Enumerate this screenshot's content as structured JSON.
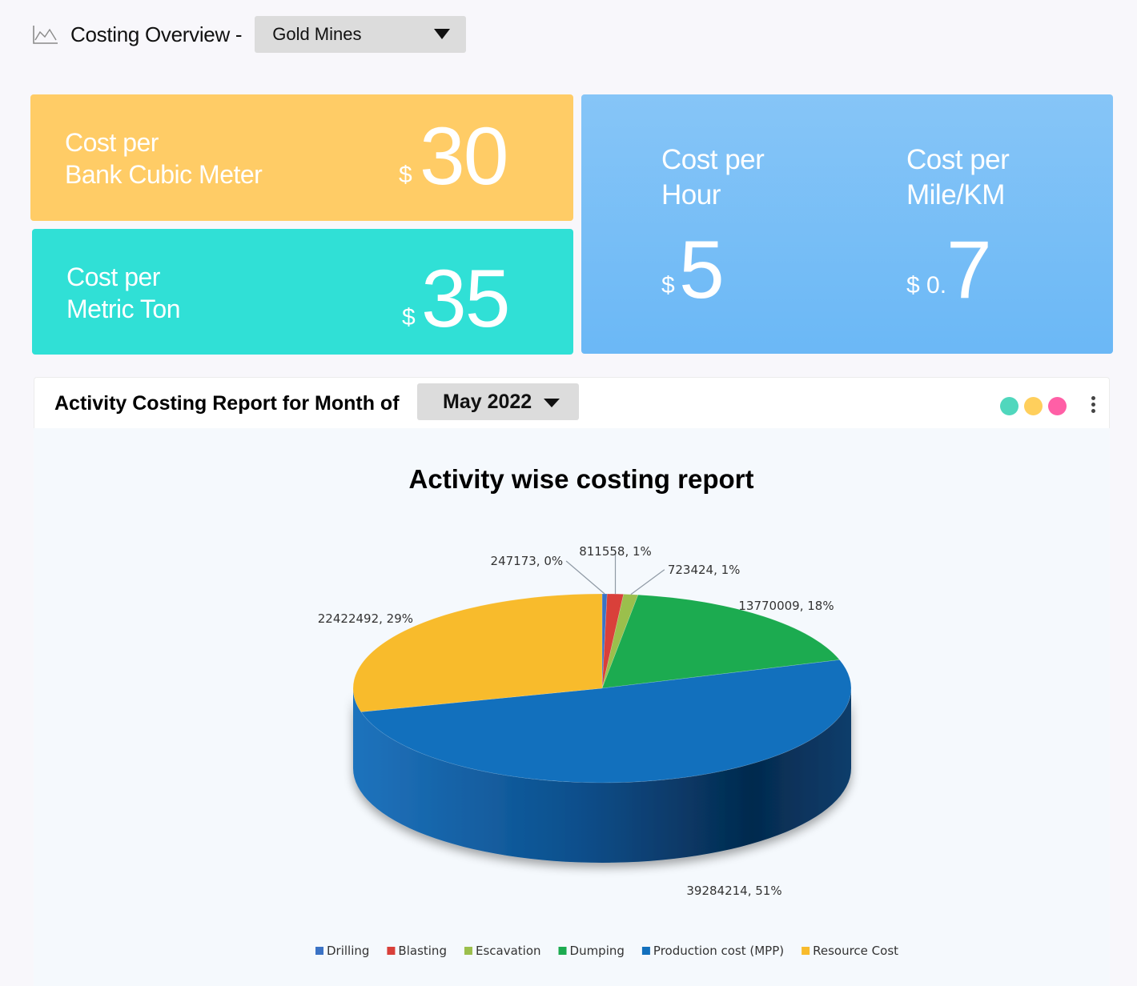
{
  "header": {
    "title": "Costing Overview -",
    "mine_selected": "Gold Mines"
  },
  "kpis": {
    "bcm": {
      "label_line1": "Cost per",
      "label_line2": "Bank Cubic Meter",
      "currency": "$",
      "value": "30",
      "color": "#ffcc66"
    },
    "ton": {
      "label_line1": "Cost per",
      "label_line2": "Metric Ton",
      "currency": "$",
      "value": "35",
      "color": "#30e0d6"
    },
    "hour": {
      "label_line1": "Cost per",
      "label_line2": "Hour",
      "currency": "$",
      "value": "5"
    },
    "mile": {
      "label_line1": "Cost per",
      "label_line2": "Mile/KM",
      "currency": "$ 0.",
      "value": "7"
    },
    "blue_color": "#75bdf6"
  },
  "report": {
    "title": "Activity Costing Report for Month of",
    "month_selected": "May 2022",
    "theme_dots": [
      "#50d7bd",
      "#ffcf5c",
      "#ff5fa6"
    ]
  },
  "chart_data": {
    "type": "pie",
    "title": "Activity wise costing report",
    "three_d": true,
    "start_angle": "12 o'clock, clockwise",
    "slices": [
      {
        "name": "Drilling",
        "value": 247173,
        "label": "247173, 0%",
        "color": "#3b73c5"
      },
      {
        "name": "Blasting",
        "value": 811558,
        "label": "811558, 1%",
        "color": "#d9403a"
      },
      {
        "name": "Escavation",
        "value": 723424,
        "label": "723424, 1%",
        "color": "#9bbf4c"
      },
      {
        "name": "Dumping",
        "value": 13770009,
        "label": "13770009, 18%",
        "color": "#1cab50"
      },
      {
        "name": "Production cost (MPP)",
        "value": 39284214,
        "label": "39284214, 51%",
        "color": "#1270bd"
      },
      {
        "name": "Resource Cost",
        "value": 22422492,
        "label": "22422492, 29%",
        "color": "#f8bb2c"
      }
    ],
    "legend_position": "bottom"
  }
}
